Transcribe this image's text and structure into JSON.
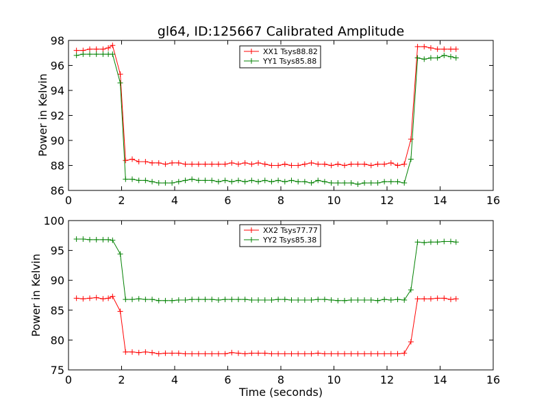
{
  "chart_data": {
    "title": "gl64, ID:125667 Calibrated Amplitude",
    "panels": [
      {
        "type": "line",
        "xlabel": "",
        "ylabel": "Power in Kelvin",
        "xlim": [
          0,
          16
        ],
        "ylim": [
          86,
          98
        ],
        "xticks": [
          0,
          2,
          4,
          6,
          8,
          10,
          12,
          14,
          16
        ],
        "yticks": [
          86,
          88,
          90,
          92,
          94,
          96,
          98
        ],
        "grid": false,
        "legend_position": "top-center",
        "series": [
          {
            "name": "XX1 Tsys88.82",
            "color": "#ff0000",
            "values": [
              [
                0.3,
                97.2
              ],
              [
                0.55,
                97.2
              ],
              [
                0.8,
                97.3
              ],
              [
                1.05,
                97.3
              ],
              [
                1.3,
                97.3
              ],
              [
                1.5,
                97.4
              ],
              [
                1.66,
                97.6
              ],
              [
                1.95,
                95.3
              ],
              [
                2.15,
                88.4
              ],
              [
                2.4,
                88.5
              ],
              [
                2.65,
                88.3
              ],
              [
                2.9,
                88.3
              ],
              [
                3.15,
                88.2
              ],
              [
                3.4,
                88.2
              ],
              [
                3.65,
                88.1
              ],
              [
                3.9,
                88.2
              ],
              [
                4.15,
                88.2
              ],
              [
                4.4,
                88.1
              ],
              [
                4.65,
                88.1
              ],
              [
                4.9,
                88.1
              ],
              [
                5.15,
                88.1
              ],
              [
                5.4,
                88.1
              ],
              [
                5.65,
                88.1
              ],
              [
                5.9,
                88.1
              ],
              [
                6.15,
                88.2
              ],
              [
                6.4,
                88.1
              ],
              [
                6.65,
                88.2
              ],
              [
                6.9,
                88.1
              ],
              [
                7.15,
                88.2
              ],
              [
                7.4,
                88.1
              ],
              [
                7.65,
                88.0
              ],
              [
                7.9,
                88.0
              ],
              [
                8.15,
                88.1
              ],
              [
                8.4,
                88.0
              ],
              [
                8.65,
                88.0
              ],
              [
                8.9,
                88.1
              ],
              [
                9.15,
                88.2
              ],
              [
                9.4,
                88.1
              ],
              [
                9.65,
                88.1
              ],
              [
                9.9,
                88.0
              ],
              [
                10.15,
                88.1
              ],
              [
                10.4,
                88.0
              ],
              [
                10.65,
                88.1
              ],
              [
                10.9,
                88.1
              ],
              [
                11.15,
                88.1
              ],
              [
                11.4,
                88.0
              ],
              [
                11.65,
                88.1
              ],
              [
                11.9,
                88.1
              ],
              [
                12.15,
                88.2
              ],
              [
                12.4,
                88.0
              ],
              [
                12.65,
                88.1
              ],
              [
                12.9,
                90.1
              ],
              [
                13.15,
                97.5
              ],
              [
                13.4,
                97.5
              ],
              [
                13.65,
                97.4
              ],
              [
                13.9,
                97.3
              ],
              [
                14.15,
                97.3
              ],
              [
                14.4,
                97.3
              ],
              [
                14.6,
                97.3
              ]
            ]
          },
          {
            "name": "YY1 Tsys85.88",
            "color": "#008000",
            "values": [
              [
                0.3,
                96.8
              ],
              [
                0.55,
                96.9
              ],
              [
                0.8,
                96.9
              ],
              [
                1.05,
                96.9
              ],
              [
                1.3,
                96.9
              ],
              [
                1.5,
                96.9
              ],
              [
                1.66,
                96.9
              ],
              [
                1.95,
                94.6
              ],
              [
                2.15,
                86.9
              ],
              [
                2.4,
                86.9
              ],
              [
                2.65,
                86.8
              ],
              [
                2.9,
                86.8
              ],
              [
                3.15,
                86.7
              ],
              [
                3.4,
                86.6
              ],
              [
                3.65,
                86.6
              ],
              [
                3.9,
                86.6
              ],
              [
                4.15,
                86.7
              ],
              [
                4.4,
                86.8
              ],
              [
                4.65,
                86.9
              ],
              [
                4.9,
                86.8
              ],
              [
                5.15,
                86.8
              ],
              [
                5.4,
                86.8
              ],
              [
                5.65,
                86.7
              ],
              [
                5.9,
                86.8
              ],
              [
                6.15,
                86.7
              ],
              [
                6.4,
                86.8
              ],
              [
                6.65,
                86.7
              ],
              [
                6.9,
                86.8
              ],
              [
                7.15,
                86.7
              ],
              [
                7.4,
                86.8
              ],
              [
                7.65,
                86.7
              ],
              [
                7.9,
                86.8
              ],
              [
                8.15,
                86.7
              ],
              [
                8.4,
                86.8
              ],
              [
                8.65,
                86.7
              ],
              [
                8.9,
                86.7
              ],
              [
                9.15,
                86.6
              ],
              [
                9.4,
                86.8
              ],
              [
                9.65,
                86.7
              ],
              [
                9.9,
                86.6
              ],
              [
                10.15,
                86.6
              ],
              [
                10.4,
                86.6
              ],
              [
                10.65,
                86.6
              ],
              [
                10.9,
                86.5
              ],
              [
                11.15,
                86.6
              ],
              [
                11.4,
                86.6
              ],
              [
                11.65,
                86.6
              ],
              [
                11.9,
                86.7
              ],
              [
                12.15,
                86.7
              ],
              [
                12.4,
                86.7
              ],
              [
                12.65,
                86.6
              ],
              [
                12.9,
                88.5
              ],
              [
                13.15,
                96.6
              ],
              [
                13.4,
                96.5
              ],
              [
                13.65,
                96.6
              ],
              [
                13.9,
                96.6
              ],
              [
                14.15,
                96.8
              ],
              [
                14.4,
                96.7
              ],
              [
                14.6,
                96.6
              ]
            ]
          }
        ]
      },
      {
        "type": "line",
        "xlabel": "Time (seconds)",
        "ylabel": "Power in Kelvin",
        "xlim": [
          0,
          16
        ],
        "ylim": [
          75,
          100
        ],
        "xticks": [
          0,
          2,
          4,
          6,
          8,
          10,
          12,
          14,
          16
        ],
        "yticks": [
          75,
          80,
          85,
          90,
          95,
          100
        ],
        "grid": false,
        "legend_position": "top-center",
        "series": [
          {
            "name": "XX2 Tsys77.77",
            "color": "#ff0000",
            "values": [
              [
                0.3,
                87.0
              ],
              [
                0.55,
                86.9
              ],
              [
                0.8,
                87.0
              ],
              [
                1.05,
                87.1
              ],
              [
                1.3,
                86.9
              ],
              [
                1.5,
                87.0
              ],
              [
                1.66,
                87.3
              ],
              [
                1.95,
                84.8
              ],
              [
                2.15,
                78.0
              ],
              [
                2.4,
                78.0
              ],
              [
                2.65,
                77.9
              ],
              [
                2.9,
                78.0
              ],
              [
                3.15,
                77.9
              ],
              [
                3.4,
                77.7
              ],
              [
                3.65,
                77.8
              ],
              [
                3.9,
                77.8
              ],
              [
                4.15,
                77.8
              ],
              [
                4.4,
                77.7
              ],
              [
                4.65,
                77.7
              ],
              [
                4.9,
                77.7
              ],
              [
                5.15,
                77.7
              ],
              [
                5.4,
                77.7
              ],
              [
                5.65,
                77.7
              ],
              [
                5.9,
                77.7
              ],
              [
                6.15,
                77.9
              ],
              [
                6.4,
                77.8
              ],
              [
                6.65,
                77.7
              ],
              [
                6.9,
                77.8
              ],
              [
                7.15,
                77.8
              ],
              [
                7.4,
                77.8
              ],
              [
                7.65,
                77.7
              ],
              [
                7.9,
                77.7
              ],
              [
                8.15,
                77.7
              ],
              [
                8.4,
                77.7
              ],
              [
                8.65,
                77.7
              ],
              [
                8.9,
                77.7
              ],
              [
                9.15,
                77.7
              ],
              [
                9.4,
                77.8
              ],
              [
                9.65,
                77.7
              ],
              [
                9.9,
                77.7
              ],
              [
                10.15,
                77.7
              ],
              [
                10.4,
                77.7
              ],
              [
                10.65,
                77.7
              ],
              [
                10.9,
                77.7
              ],
              [
                11.15,
                77.7
              ],
              [
                11.4,
                77.7
              ],
              [
                11.65,
                77.7
              ],
              [
                11.9,
                77.7
              ],
              [
                12.15,
                77.7
              ],
              [
                12.4,
                77.7
              ],
              [
                12.65,
                77.8
              ],
              [
                12.9,
                79.7
              ],
              [
                13.15,
                86.9
              ],
              [
                13.4,
                86.9
              ],
              [
                13.65,
                86.9
              ],
              [
                13.9,
                87.0
              ],
              [
                14.15,
                87.0
              ],
              [
                14.4,
                86.8
              ],
              [
                14.6,
                86.9
              ]
            ]
          },
          {
            "name": "YY2 Tsys85.38",
            "color": "#008000",
            "values": [
              [
                0.3,
                96.9
              ],
              [
                0.55,
                96.9
              ],
              [
                0.8,
                96.8
              ],
              [
                1.05,
                96.8
              ],
              [
                1.3,
                96.8
              ],
              [
                1.5,
                96.8
              ],
              [
                1.66,
                96.7
              ],
              [
                1.95,
                94.4
              ],
              [
                2.15,
                86.8
              ],
              [
                2.4,
                86.8
              ],
              [
                2.65,
                86.9
              ],
              [
                2.9,
                86.8
              ],
              [
                3.15,
                86.8
              ],
              [
                3.4,
                86.6
              ],
              [
                3.65,
                86.6
              ],
              [
                3.9,
                86.6
              ],
              [
                4.15,
                86.7
              ],
              [
                4.4,
                86.7
              ],
              [
                4.65,
                86.8
              ],
              [
                4.9,
                86.8
              ],
              [
                5.15,
                86.8
              ],
              [
                5.4,
                86.8
              ],
              [
                5.65,
                86.7
              ],
              [
                5.9,
                86.8
              ],
              [
                6.15,
                86.8
              ],
              [
                6.4,
                86.8
              ],
              [
                6.65,
                86.8
              ],
              [
                6.9,
                86.7
              ],
              [
                7.15,
                86.7
              ],
              [
                7.4,
                86.7
              ],
              [
                7.65,
                86.7
              ],
              [
                7.9,
                86.8
              ],
              [
                8.15,
                86.8
              ],
              [
                8.4,
                86.7
              ],
              [
                8.65,
                86.7
              ],
              [
                8.9,
                86.7
              ],
              [
                9.15,
                86.7
              ],
              [
                9.4,
                86.8
              ],
              [
                9.65,
                86.8
              ],
              [
                9.9,
                86.7
              ],
              [
                10.15,
                86.6
              ],
              [
                10.4,
                86.6
              ],
              [
                10.65,
                86.7
              ],
              [
                10.9,
                86.7
              ],
              [
                11.15,
                86.7
              ],
              [
                11.4,
                86.7
              ],
              [
                11.65,
                86.6
              ],
              [
                11.9,
                86.8
              ],
              [
                12.15,
                86.7
              ],
              [
                12.4,
                86.8
              ],
              [
                12.65,
                86.7
              ],
              [
                12.9,
                88.4
              ],
              [
                13.15,
                96.4
              ],
              [
                13.4,
                96.3
              ],
              [
                13.65,
                96.4
              ],
              [
                13.9,
                96.4
              ],
              [
                14.15,
                96.5
              ],
              [
                14.4,
                96.5
              ],
              [
                14.6,
                96.4
              ]
            ]
          }
        ]
      }
    ]
  }
}
